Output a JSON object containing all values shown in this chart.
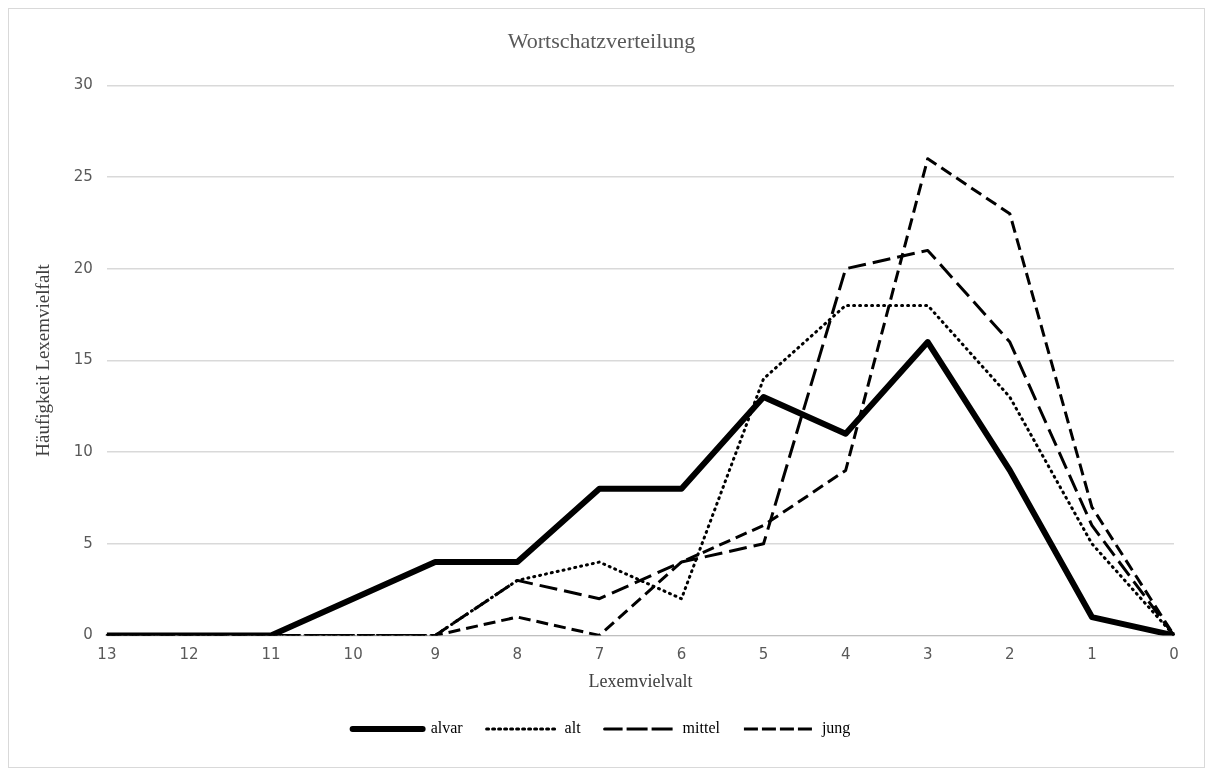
{
  "chart_data": {
    "type": "line",
    "title": "Wortschatzverteilung",
    "xlabel": "Lexemvielvalt",
    "ylabel": "Häufigkeit Lexemvielfalt",
    "categories": [
      "13",
      "12",
      "11",
      "10",
      "9",
      "8",
      "7",
      "6",
      "5",
      "4",
      "3",
      "2",
      "1",
      "0"
    ],
    "series": [
      {
        "name": "alvar",
        "color": "#000000",
        "line_style": "solid",
        "values": [
          0,
          0,
          0,
          2,
          4,
          4,
          8,
          8,
          13,
          11,
          16,
          9,
          1,
          0
        ]
      },
      {
        "name": "alt",
        "color": "#000000",
        "line_style": "dotted",
        "values": [
          0,
          0,
          0,
          0,
          0,
          3,
          4,
          2,
          14,
          18,
          18,
          13,
          5,
          0
        ]
      },
      {
        "name": "mittel",
        "color": "#000000",
        "line_style": "dashed",
        "values": [
          0,
          0,
          0,
          0,
          0,
          3,
          2,
          4,
          5,
          20,
          21,
          16,
          6,
          0
        ]
      },
      {
        "name": "jung",
        "color": "#000000",
        "line_style": "dashed",
        "values": [
          0,
          0,
          0,
          0,
          0,
          1,
          0,
          4,
          6,
          9,
          26,
          23,
          7,
          0
        ]
      }
    ],
    "ylim": [
      0,
      30
    ],
    "yticks": [
      0,
      5,
      10,
      15,
      20,
      25,
      30
    ],
    "grid": "y",
    "legend": "bottom",
    "marker": "none"
  }
}
